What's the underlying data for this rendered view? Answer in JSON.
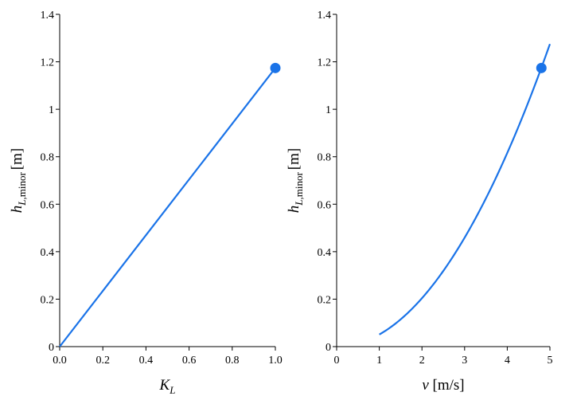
{
  "chart_data": [
    {
      "type": "line",
      "xlabel": "K_L",
      "ylabel": "h_L,minor [m]",
      "xlim": [
        0,
        1
      ],
      "ylim": [
        0,
        1.4
      ],
      "xticks": [
        "0.0",
        "0.2",
        "0.4",
        "0.6",
        "0.8",
        "1.0"
      ],
      "yticks": [
        "0",
        "0.2",
        "0.4",
        "0.6",
        "0.8",
        "1",
        "1.2",
        "1.4"
      ],
      "grid": false,
      "color": "#1a73e8",
      "series": [
        {
          "x": [
            0,
            1
          ],
          "y": [
            0,
            1.174
          ]
        }
      ],
      "marker": {
        "x": 1.0,
        "y": 1.174
      }
    },
    {
      "type": "line",
      "xlabel": "v [m/s]",
      "ylabel": "h_L,minor [m]",
      "xlim": [
        0,
        5
      ],
      "ylim": [
        0,
        1.4
      ],
      "xticks": [
        "0",
        "1",
        "2",
        "3",
        "4",
        "5"
      ],
      "yticks": [
        "0",
        "0.2",
        "0.4",
        "0.6",
        "0.8",
        "1",
        "1.2",
        "1.4"
      ],
      "grid": false,
      "color": "#1a73e8",
      "series": [
        {
          "curve": "quadratic",
          "coef": 0.051,
          "x_range": [
            1,
            5
          ]
        }
      ],
      "marker": {
        "x": 4.8,
        "y": 1.174
      }
    }
  ]
}
